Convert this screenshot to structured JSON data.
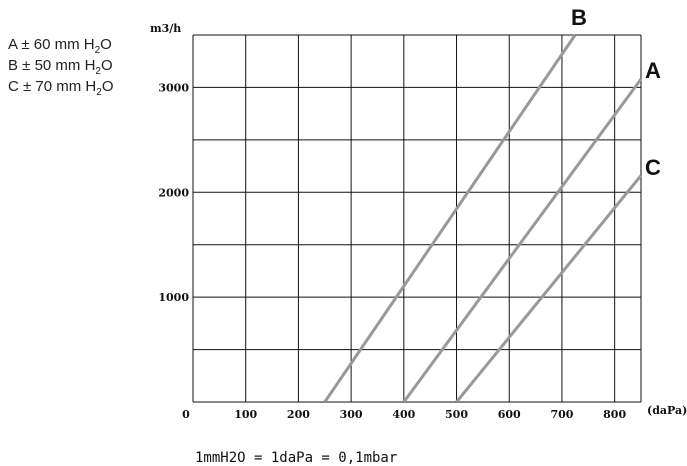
{
  "legend": [
    {
      "letter": "A",
      "pm": "±",
      "value": "60",
      "unit": "mm H",
      "sub": "2",
      "tail": "O"
    },
    {
      "letter": "B",
      "pm": "±",
      "value": "50",
      "unit": "mm H",
      "sub": "2",
      "tail": "O"
    },
    {
      "letter": "C",
      "pm": "±",
      "value": "70",
      "unit": "mm H",
      "sub": "2",
      "tail": "O"
    }
  ],
  "footnote": "1mmH2O = 1daPa = 0,1mbar",
  "colors": {
    "series": "#999999",
    "grid": "#111111"
  },
  "chart_data": {
    "type": "line",
    "xlabel": "(daPa)",
    "ylabel": "m3/h",
    "xlim": [
      0,
      850
    ],
    "ylim": [
      0,
      3500
    ],
    "x_ticks": [
      0,
      100,
      200,
      300,
      400,
      500,
      600,
      700,
      800
    ],
    "y_ticks": [
      1000,
      2000,
      3000
    ],
    "grid": true,
    "series": [
      {
        "name": "B",
        "x": [
          250,
          725
        ],
        "y": [
          0,
          3500
        ]
      },
      {
        "name": "A",
        "x": [
          400,
          850
        ],
        "y": [
          0,
          3080
        ]
      },
      {
        "name": "C",
        "x": [
          500,
          850
        ],
        "y": [
          0,
          2160
        ]
      }
    ]
  }
}
